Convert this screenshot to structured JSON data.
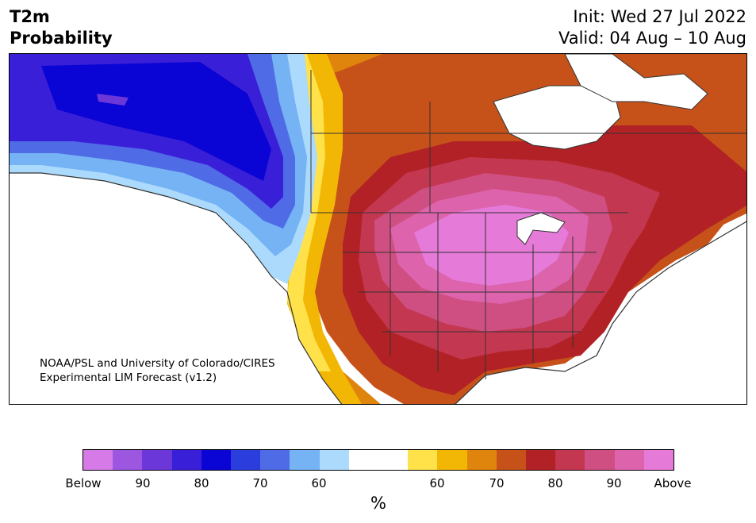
{
  "header": {
    "title_line1": "T2m",
    "title_line2": "Probability",
    "init": "Init: Wed 27 Jul 2022",
    "valid": "Valid: 04 Aug – 10 Aug"
  },
  "map": {
    "credit_line1": "NOAA/PSL and University of Colorado/CIRES",
    "credit_line2": "Experimental LIM Forecast (v1.2)",
    "region": "North America",
    "colors": {
      "deep_blue": "#0a04d4",
      "blue": "#3a1fd8",
      "mid_blue": "#4f6be6",
      "light_blue": "#75b3f5",
      "pale_blue": "#acdafc",
      "yellow": "#ffe14a",
      "gold": "#f2b705",
      "orange": "#df840c",
      "dark_orange": "#c6521a",
      "red": "#b12125",
      "crimson": "#c43750",
      "rose": "#cf4f82",
      "pink": "#dc63ac",
      "magenta": "#e57ad8",
      "land_white": "#ffffff",
      "border": "#333333"
    }
  },
  "colorbar": {
    "unit": "%",
    "colors": [
      "#d67ae8",
      "#9d56e0",
      "#6b37d8",
      "#3a1fd8",
      "#0a04d4",
      "#2b3ddc",
      "#4f6be6",
      "#75b3f5",
      "#acdafc",
      "#ffffff",
      "#ffffff",
      "#ffe14a",
      "#f2b705",
      "#df840c",
      "#c6521a",
      "#b12125",
      "#c43750",
      "#cf4f82",
      "#dc63ac",
      "#e57ad8"
    ],
    "tick_labels": [
      "Below",
      "90",
      "80",
      "70",
      "60",
      "60",
      "70",
      "80",
      "90",
      "Above"
    ]
  }
}
